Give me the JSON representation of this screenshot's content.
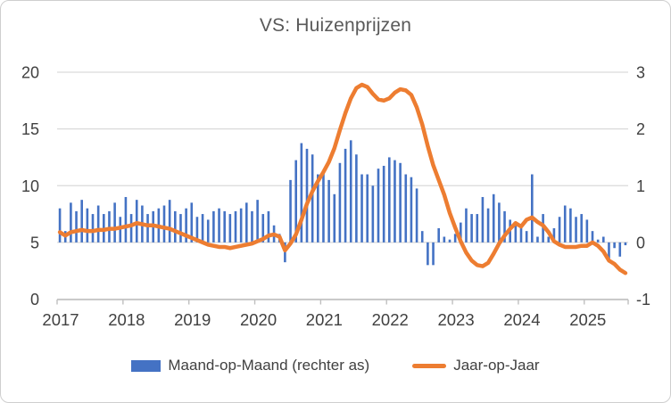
{
  "title": "VS: Huizenprijzen",
  "legend": {
    "mom_label": "Maand-op-Maand (rechter as)",
    "yoy_label": "Jaar-op-Jaar"
  },
  "colors": {
    "bar_blue": "#4472C4",
    "line_orange": "#ED7D31",
    "gridline": "#D9D9D9",
    "axis_line": "#BFBFBF",
    "axis_text": "#404040",
    "title_text": "#595959"
  },
  "chart_data": {
    "type": "bar",
    "subtype": "combo bar+line, dual axis, monthly data Jan 2017 - Aug 2025",
    "title": "VS: Huizenprijzen",
    "x_monthly_start": "2017-01",
    "x_monthly_end": "2025-08",
    "x_tick_labels": [
      "2017",
      "2018",
      "2019",
      "2020",
      "2021",
      "2022",
      "2023",
      "2024",
      "2025"
    ],
    "left_axis": {
      "ticks": [
        0,
        5,
        10,
        15,
        20
      ],
      "range": [
        0,
        20
      ],
      "series": "Jaar-op-Jaar"
    },
    "right_axis": {
      "ticks": [
        -1,
        0,
        1,
        2,
        3
      ],
      "range": [
        -1,
        3
      ],
      "series": "Maand-op-Maand"
    },
    "grid": "horizontal",
    "legend_position": "bottom",
    "series": [
      {
        "name": "Maand-op-Maand (rechter as)",
        "type": "bar",
        "axis": "right",
        "color": "#4472C4",
        "values": [
          0.6,
          0.2,
          0.7,
          0.55,
          0.75,
          0.6,
          0.5,
          0.65,
          0.5,
          0.55,
          0.7,
          0.45,
          0.8,
          0.5,
          0.75,
          0.65,
          0.5,
          0.55,
          0.6,
          0.65,
          0.75,
          0.55,
          0.5,
          0.6,
          0.7,
          0.45,
          0.5,
          0.4,
          0.55,
          0.6,
          0.55,
          0.5,
          0.55,
          0.6,
          0.7,
          0.55,
          0.75,
          0.5,
          0.55,
          0.3,
          0.15,
          -0.35,
          1.1,
          1.45,
          1.75,
          1.65,
          1.55,
          1.2,
          1.25,
          1.1,
          0.85,
          1.4,
          1.65,
          1.8,
          1.55,
          1.2,
          1.2,
          1.0,
          1.3,
          1.35,
          1.5,
          1.45,
          1.4,
          1.2,
          1.15,
          0.95,
          0.2,
          -0.4,
          -0.4,
          0.25,
          0.1,
          0.05,
          0.15,
          0.35,
          0.6,
          0.5,
          0.5,
          0.8,
          0.6,
          0.85,
          0.7,
          0.55,
          0.4,
          0.3,
          0.25,
          0.2,
          1.2,
          0.1,
          0.5,
          0.1,
          0.25,
          0.45,
          0.65,
          0.6,
          0.45,
          0.5,
          0.4,
          0.2,
          0.05,
          0.1,
          -0.35,
          -0.1,
          -0.25,
          -0.05
        ]
      },
      {
        "name": "Jaar-op-Jaar",
        "type": "line",
        "axis": "left",
        "color": "#ED7D31",
        "values": [
          5.9,
          5.6,
          5.9,
          6.0,
          6.1,
          6.0,
          6.0,
          6.1,
          6.1,
          6.2,
          6.2,
          6.3,
          6.4,
          6.5,
          6.7,
          6.6,
          6.5,
          6.5,
          6.4,
          6.3,
          6.2,
          6.0,
          5.8,
          5.6,
          5.4,
          5.2,
          5.0,
          4.8,
          4.7,
          4.6,
          4.6,
          4.5,
          4.6,
          4.7,
          4.8,
          4.9,
          5.1,
          5.3,
          5.6,
          5.7,
          5.5,
          4.3,
          4.9,
          5.7,
          7.0,
          8.4,
          9.5,
          10.4,
          11.2,
          12.1,
          13.3,
          14.9,
          16.4,
          17.7,
          18.6,
          18.9,
          18.7,
          18.1,
          17.6,
          17.5,
          17.7,
          18.2,
          18.5,
          18.4,
          18.0,
          16.9,
          15.4,
          13.5,
          11.8,
          10.5,
          9.2,
          7.6,
          6.3,
          5.1,
          4.1,
          3.4,
          3.0,
          2.9,
          3.2,
          4.0,
          4.9,
          5.6,
          6.2,
          6.7,
          6.4,
          7.0,
          7.2,
          6.8,
          6.5,
          5.9,
          5.1,
          4.8,
          4.6,
          4.6,
          4.6,
          4.7,
          4.7,
          5.0,
          4.7,
          4.2,
          3.4,
          3.1,
          2.6,
          2.3
        ]
      }
    ]
  }
}
